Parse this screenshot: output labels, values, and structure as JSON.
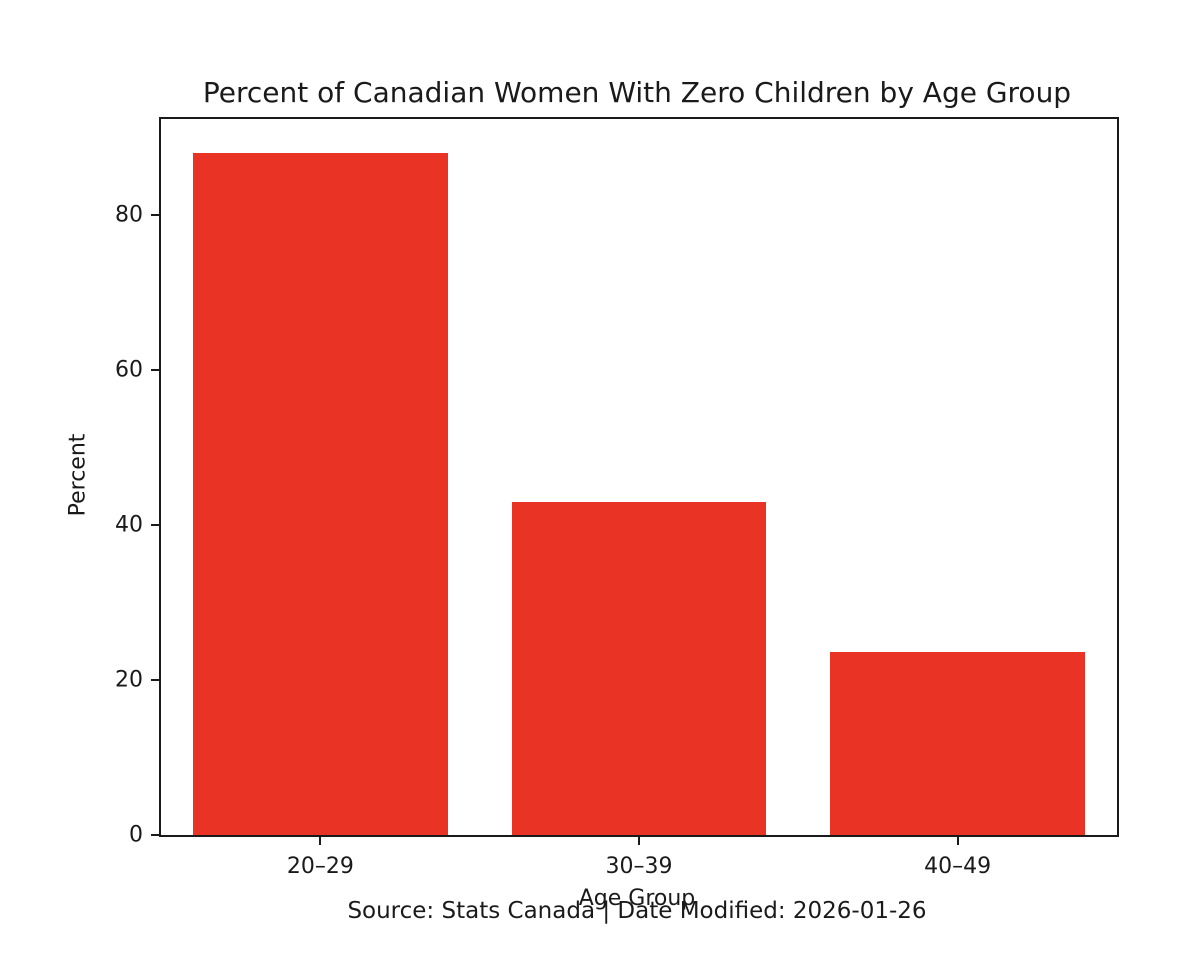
{
  "chart_data": {
    "type": "bar",
    "title": "Percent of Canadian Women With Zero Children by Age Group",
    "xlabel": "Age Group",
    "ylabel": "Percent",
    "categories": [
      "20–29",
      "30–39",
      "40–49"
    ],
    "values": [
      88,
      43,
      23.6
    ],
    "yticks": [
      0,
      20,
      40,
      60,
      80
    ],
    "ylim": [
      0,
      92.4
    ],
    "bar_color": "#e93325",
    "bar_rel_width": 0.8,
    "grid": "off",
    "legend": "none"
  },
  "caption": {
    "text": "Source: Stats Canada | Date Modified: 2026-01-26"
  }
}
